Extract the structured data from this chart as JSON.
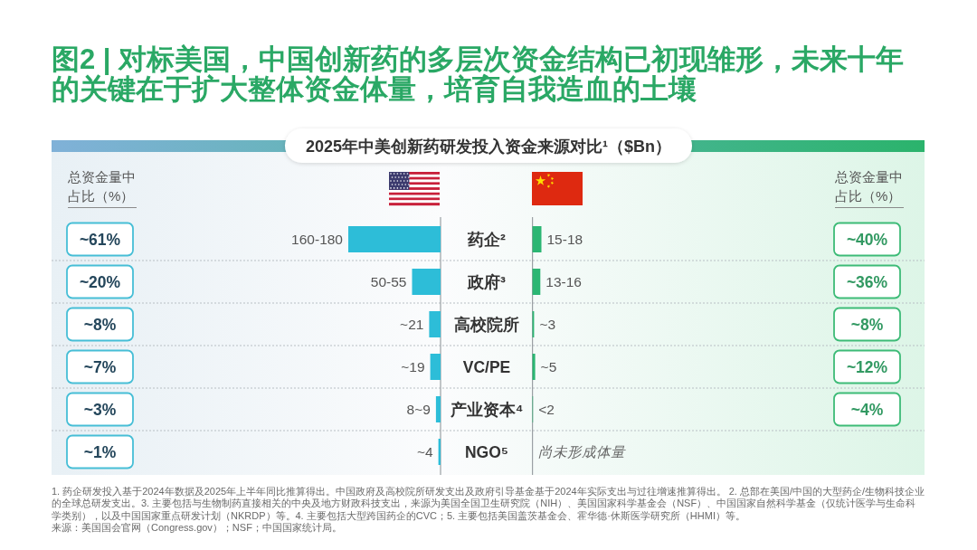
{
  "chart_data": [
    {
      "type": "other",
      "title": "图2 | 对标美国，中国创新药的多层次资金结构已初现雏形，未来十年的关键在于扩大整体资金体量，培育自我造血的土壤",
      "subtitle": "2025年中美创新药研发投入资金来源对比¹（$Bn）",
      "annotations": [
        "1. 药企研发投入基于2024年数据及2025年上半年同比推算得出。中国政府及高校院所研发支出及政府引导基金基于2024年实际支出与过往增速推算得出。 2. 总部在美国/中国的大型药企/生物科技企业的全球总研发支出。3. 主要包括与生物制药直接相关的中央及地方财政科技支出，来源为美国全国卫生研究院（NIH）、美国国家科学基金会（NSF）、中国国家自然科学基金（仅统计医学与生命科学类别），以及中国国家重点研发计划（NKRDP）等。4. 主要包括大型跨国药企的CVC；5. 主要包括美国盖茨基金会、霍华德·休斯医学研究所（HHMI）等。",
        "来源：美国国会官网（Congress.gov）；NSF；中国国家统计局。"
      ]
    },
    {
      "type": "other",
      "title": "总资金量中占比（%）",
      "values": [
        61,
        20,
        8,
        7,
        3,
        1
      ],
      "value_labels": [
        "~61%",
        "~20%",
        "~8%",
        "~7%",
        "~3%",
        "~1%"
      ],
      "color": "#46bed6"
    },
    {
      "type": "bar",
      "orientation": "horizontal",
      "categories": [
        "药企²",
        "政府³",
        "高校院所",
        "VC/PE",
        "产业资本⁴",
        "NGO⁵"
      ],
      "values": [
        170,
        52.5,
        21,
        19,
        8.5,
        4
      ],
      "value_labels": [
        "160-180",
        "50-55",
        "~21",
        "~19",
        "8~9",
        "~4"
      ],
      "color": "#2dbdd8",
      "grid": "y"
    },
    {
      "type": "bar",
      "orientation": "horizontal",
      "categories": [
        "药企²",
        "政府³",
        "高校院所",
        "VC/PE",
        "产业资本⁴",
        "NGO⁵"
      ],
      "values": [
        16.5,
        14.5,
        3,
        5,
        1,
        null
      ],
      "value_labels": [
        "15-18",
        "13-16",
        "~3",
        "~5",
        "<2",
        "尚未形成体量"
      ],
      "color": "#2bb673",
      "grid": "y",
      "tick_labels": false
    },
    {
      "type": "other",
      "title": "总资金量中占比（%）",
      "values": [
        40,
        36,
        8,
        12,
        4
      ],
      "value_labels": [
        "~40%",
        "~36%",
        "~8%",
        "~12%",
        "~4%"
      ],
      "color": "#3dbb77"
    }
  ]
}
